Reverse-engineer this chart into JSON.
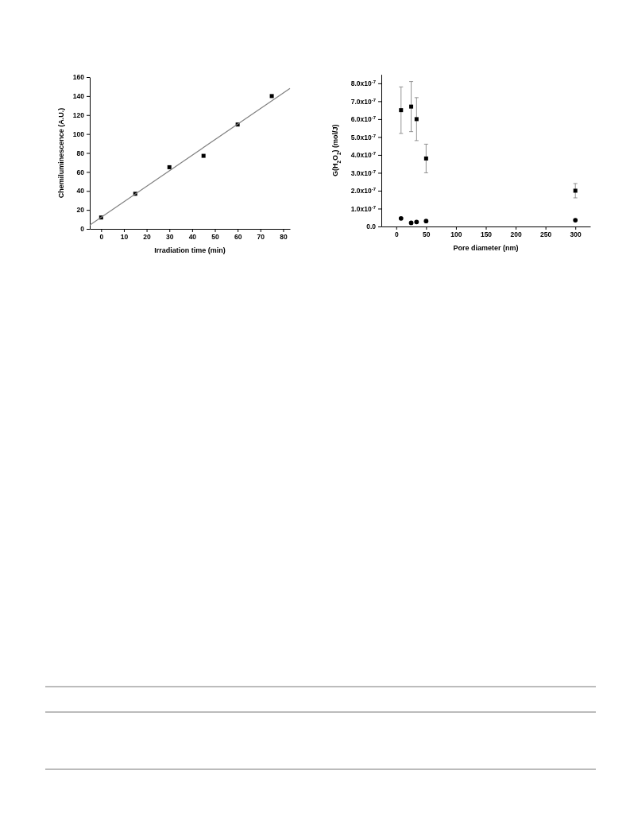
{
  "chart_data": [
    {
      "type": "scatter",
      "xlabel": "Irradiation time (min)",
      "ylabel": "Chemiluminescence (A.U.)",
      "xlim": [
        -5,
        83
      ],
      "ylim": [
        0,
        160
      ],
      "xticks": [
        0,
        10,
        20,
        30,
        40,
        50,
        60,
        70,
        80
      ],
      "yticks": [
        0,
        20,
        40,
        60,
        80,
        100,
        120,
        140,
        160
      ],
      "marker": "square",
      "series": [
        {
          "color": "#000000",
          "x": [
            0,
            15,
            30,
            45,
            60,
            75
          ],
          "values": [
            12,
            37,
            65,
            77,
            110,
            140
          ]
        },
        {
          "type": "line",
          "color": "#808080",
          "marker": "none",
          "x": [
            -5,
            83
          ],
          "values": [
            4,
            148
          ]
        }
      ]
    },
    {
      "type": "scatter",
      "xlabel": "Pore diameter (nm)",
      "ylabel": "G(H$_{2}$O$_{2}$) (mol/J)",
      "xlim": [
        -25,
        325
      ],
      "ylim": [
        0,
        8.5e-07
      ],
      "xticks": [
        0,
        50,
        100,
        150,
        200,
        250,
        300
      ],
      "yticks": [
        {
          "value": 0,
          "label": "0.0"
        },
        {
          "value": 1e-07,
          "label": "1.0x10$^{-7}$"
        },
        {
          "value": 2e-07,
          "label": "2.0x10$^{-7}$"
        },
        {
          "value": 3e-07,
          "label": "3.0x10$^{-7}$"
        },
        {
          "value": 4e-07,
          "label": "4.0x10$^{-7}$"
        },
        {
          "value": 5e-07,
          "label": "5.0x10$^{-7}$"
        },
        {
          "value": 6e-07,
          "label": "6.0x10$^{-7}$"
        },
        {
          "value": 7e-07,
          "label": "7.0x10$^{-7}$"
        },
        {
          "value": 8e-07,
          "label": "8.0x10$^{-7}$"
        }
      ],
      "series": [
        {
          "color": "#000000",
          "marker": "square",
          "x": [
            8,
            25,
            34,
            50,
            300
          ],
          "values": [
            6.5e-07,
            6.7e-07,
            6e-07,
            3.8e-07,
            2e-07
          ],
          "errors": [
            [
              5.2e-07,
              7.8e-07
            ],
            [
              5.3e-07,
              8.1e-07
            ],
            [
              4.8e-07,
              7.2e-07
            ],
            [
              3e-07,
              4.6e-07
            ],
            [
              1.6e-07,
              2.4e-07
            ]
          ]
        },
        {
          "color": "#000000",
          "marker": "circle",
          "x": [
            8,
            25,
            34,
            50,
            300
          ],
          "values": [
            4.5e-08,
            2e-08,
            2.5e-08,
            3e-08,
            3.5e-08
          ]
        }
      ]
    }
  ]
}
